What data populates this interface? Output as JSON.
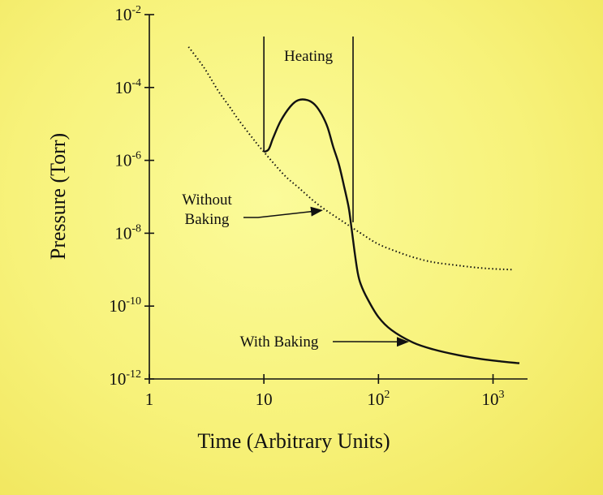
{
  "chart_data": {
    "type": "line",
    "xlabel": "Time (Arbitrary Units)",
    "ylabel": "Pressure (Torr)",
    "x_scale": "log",
    "y_scale": "log",
    "xlim": [
      1,
      2000
    ],
    "ylim": [
      1e-12,
      0.01
    ],
    "grid": false,
    "x_ticks": [
      {
        "value": 1,
        "base": "1",
        "exp": ""
      },
      {
        "value": 10,
        "base": "10",
        "exp": ""
      },
      {
        "value": 100,
        "base": "10",
        "exp": "2"
      },
      {
        "value": 1000,
        "base": "10",
        "exp": "3"
      }
    ],
    "y_ticks": [
      {
        "value": 0.01,
        "base": "10",
        "exp": "-2"
      },
      {
        "value": 0.0001,
        "base": "10",
        "exp": "-4"
      },
      {
        "value": 1e-06,
        "base": "10",
        "exp": "-6"
      },
      {
        "value": 1e-08,
        "base": "10",
        "exp": "-8"
      },
      {
        "value": 1e-10,
        "base": "10",
        "exp": "-10"
      },
      {
        "value": 1e-12,
        "base": "10",
        "exp": "-12"
      }
    ],
    "series": [
      {
        "name": "Without Baking",
        "style": "dotted",
        "x": [
          2.2,
          3,
          4,
          5,
          6,
          8,
          10,
          15,
          20,
          30,
          50,
          70,
          100,
          150,
          200,
          300,
          500,
          700,
          1000,
          1500
        ],
        "y": [
          0.0013,
          0.00035,
          8e-05,
          3e-05,
          1.3e-05,
          4e-06,
          1.7e-06,
          4e-07,
          1.8e-07,
          6e-08,
          2e-08,
          1e-08,
          5e-09,
          3e-09,
          2.2e-09,
          1.6e-09,
          1.3e-09,
          1.15e-09,
          1.05e-09,
          1e-09
        ]
      },
      {
        "name": "With Baking",
        "style": "solid",
        "x": [
          10,
          11,
          12,
          14,
          17,
          20,
          24,
          28,
          32,
          36,
          40,
          45,
          50,
          55,
          58,
          62,
          66,
          70,
          80,
          100,
          130,
          200,
          300,
          500,
          800,
          1200,
          1700
        ],
        "y": [
          1.7e-06,
          2e-06,
          4e-06,
          1.2e-05,
          3e-05,
          4.5e-05,
          4.5e-05,
          3.3e-05,
          1.8e-05,
          8e-06,
          2.5e-06,
          8e-07,
          2e-07,
          5e-08,
          1.5e-08,
          3e-09,
          8e-10,
          4e-10,
          1.6e-10,
          5e-11,
          2.2e-11,
          1e-11,
          6.5e-12,
          4.5e-12,
          3.5e-12,
          3e-12,
          2.7e-12
        ]
      }
    ],
    "heating_region": {
      "label": "Heating",
      "x_start": 10,
      "x_end": 60
    },
    "annotations": [
      {
        "text": [
          "Without",
          "Baking"
        ],
        "arrow_to_series": "Without Baking",
        "arrow_x": 32
      },
      {
        "text": [
          "With Baking"
        ],
        "arrow_to_series": "With Baking",
        "arrow_x": 180
      }
    ]
  }
}
